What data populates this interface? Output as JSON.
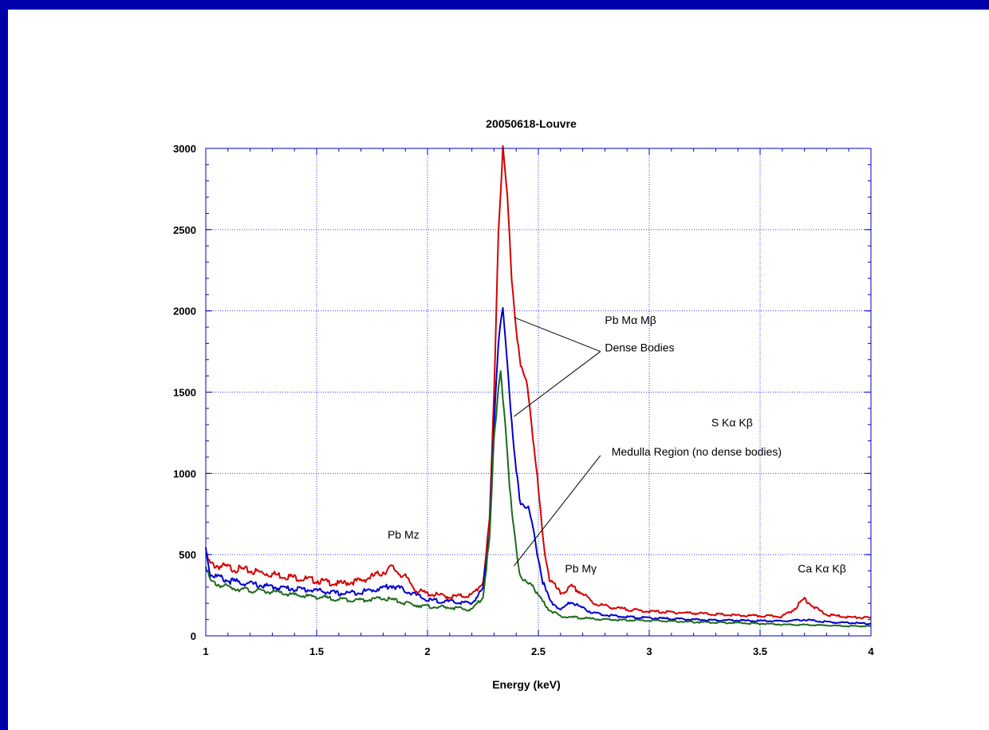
{
  "colors": {
    "background": "#0000aa",
    "plot_background": "#ffffff",
    "grid": "#3a3aff",
    "axis": "#0000cc",
    "red": "#d40000",
    "blue": "#0000cc",
    "green": "#1e6b1e"
  },
  "chart_data": {
    "type": "line",
    "title": "20050618-Louvre",
    "xlabel": "Energy (keV)",
    "ylabel": "",
    "xlim": [
      1,
      4
    ],
    "ylim": [
      0,
      3000
    ],
    "grid": true,
    "x_ticks": [
      1,
      1.5,
      2,
      2.5,
      3,
      3.5,
      4
    ],
    "x_tick_labels": [
      "1",
      "1.5",
      "2",
      "2.5",
      "3",
      "3.5",
      "4"
    ],
    "y_ticks": [
      0,
      500,
      1000,
      1500,
      2000,
      2500,
      3000
    ],
    "y_tick_labels": [
      "0",
      "500",
      "1000",
      "1500",
      "2000",
      "2500",
      "3000"
    ],
    "series": [
      {
        "color": "#d40000",
        "points": [
          [
            1.0,
            500
          ],
          [
            1.02,
            440
          ],
          [
            1.1,
            420
          ],
          [
            1.2,
            400
          ],
          [
            1.3,
            380
          ],
          [
            1.4,
            360
          ],
          [
            1.5,
            340
          ],
          [
            1.6,
            320
          ],
          [
            1.7,
            340
          ],
          [
            1.78,
            380
          ],
          [
            1.84,
            420
          ],
          [
            1.9,
            360
          ],
          [
            1.95,
            280
          ],
          [
            2.0,
            260
          ],
          [
            2.1,
            240
          ],
          [
            2.2,
            250
          ],
          [
            2.25,
            330
          ],
          [
            2.28,
            700
          ],
          [
            2.3,
            1500
          ],
          [
            2.32,
            2500
          ],
          [
            2.34,
            3000
          ],
          [
            2.36,
            2700
          ],
          [
            2.38,
            2200
          ],
          [
            2.4,
            1900
          ],
          [
            2.42,
            1650
          ],
          [
            2.45,
            1550
          ],
          [
            2.47,
            1300
          ],
          [
            2.5,
            900
          ],
          [
            2.52,
            600
          ],
          [
            2.55,
            350
          ],
          [
            2.6,
            260
          ],
          [
            2.65,
            300
          ],
          [
            2.7,
            260
          ],
          [
            2.75,
            200
          ],
          [
            2.85,
            170
          ],
          [
            3.0,
            150
          ],
          [
            3.2,
            140
          ],
          [
            3.4,
            125
          ],
          [
            3.6,
            120
          ],
          [
            3.65,
            160
          ],
          [
            3.7,
            230
          ],
          [
            3.75,
            170
          ],
          [
            3.8,
            130
          ],
          [
            3.9,
            115
          ],
          [
            4.0,
            110
          ]
        ]
      },
      {
        "color": "#0000cc",
        "points": [
          [
            1.0,
            540
          ],
          [
            1.02,
            380
          ],
          [
            1.1,
            340
          ],
          [
            1.2,
            320
          ],
          [
            1.3,
            300
          ],
          [
            1.4,
            290
          ],
          [
            1.5,
            280
          ],
          [
            1.6,
            260
          ],
          [
            1.7,
            270
          ],
          [
            1.78,
            290
          ],
          [
            1.84,
            310
          ],
          [
            1.9,
            280
          ],
          [
            2.0,
            220
          ],
          [
            2.1,
            210
          ],
          [
            2.2,
            200
          ],
          [
            2.25,
            290
          ],
          [
            2.28,
            650
          ],
          [
            2.3,
            1300
          ],
          [
            2.32,
            1800
          ],
          [
            2.34,
            2030
          ],
          [
            2.36,
            1700
          ],
          [
            2.38,
            1300
          ],
          [
            2.4,
            1000
          ],
          [
            2.42,
            820
          ],
          [
            2.45,
            800
          ],
          [
            2.47,
            700
          ],
          [
            2.5,
            480
          ],
          [
            2.52,
            330
          ],
          [
            2.55,
            220
          ],
          [
            2.6,
            160
          ],
          [
            2.65,
            210
          ],
          [
            2.7,
            170
          ],
          [
            2.75,
            140
          ],
          [
            2.85,
            120
          ],
          [
            3.0,
            110
          ],
          [
            3.2,
            100
          ],
          [
            3.4,
            95
          ],
          [
            3.6,
            90
          ],
          [
            3.7,
            100
          ],
          [
            3.8,
            85
          ],
          [
            3.9,
            80
          ],
          [
            4.0,
            75
          ]
        ]
      },
      {
        "color": "#1e6b1e",
        "points": [
          [
            1.0,
            450
          ],
          [
            1.02,
            330
          ],
          [
            1.1,
            300
          ],
          [
            1.2,
            280
          ],
          [
            1.3,
            270
          ],
          [
            1.4,
            250
          ],
          [
            1.5,
            240
          ],
          [
            1.6,
            225
          ],
          [
            1.7,
            220
          ],
          [
            1.8,
            230
          ],
          [
            1.85,
            220
          ],
          [
            1.9,
            200
          ],
          [
            2.0,
            180
          ],
          [
            2.1,
            175
          ],
          [
            2.2,
            160
          ],
          [
            2.25,
            240
          ],
          [
            2.28,
            600
          ],
          [
            2.3,
            1200
          ],
          [
            2.32,
            1550
          ],
          [
            2.33,
            1640
          ],
          [
            2.35,
            1300
          ],
          [
            2.37,
            900
          ],
          [
            2.4,
            550
          ],
          [
            2.42,
            350
          ],
          [
            2.45,
            320
          ],
          [
            2.47,
            330
          ],
          [
            2.5,
            240
          ],
          [
            2.55,
            160
          ],
          [
            2.6,
            120
          ],
          [
            2.7,
            110
          ],
          [
            2.8,
            100
          ],
          [
            3.0,
            95
          ],
          [
            3.2,
            85
          ],
          [
            3.4,
            80
          ],
          [
            3.6,
            70
          ],
          [
            3.8,
            65
          ],
          [
            3.9,
            60
          ],
          [
            4.0,
            60
          ]
        ]
      }
    ],
    "annotations": [
      {
        "text": "Pb Mz",
        "x": 1.82,
        "y": 600
      },
      {
        "text": "Pb Mα Mβ",
        "x": 2.8,
        "y": 1920
      },
      {
        "text": "Dense Bodies",
        "x": 2.8,
        "y": 1750
      },
      {
        "text": "S Kα Kβ",
        "x": 3.28,
        "y": 1290
      },
      {
        "text": "Medulla Region (no dense bodies)",
        "x": 2.83,
        "y": 1110
      },
      {
        "text": "Pb Mγ",
        "x": 2.62,
        "y": 390
      },
      {
        "text": "Ca Kα Kβ",
        "x": 3.67,
        "y": 390
      }
    ],
    "leader_lines": [
      {
        "from": [
          2.39,
          1960
        ],
        "to": [
          2.78,
          1750
        ]
      },
      {
        "from": [
          2.78,
          1750
        ],
        "to": [
          2.39,
          1350
        ]
      },
      {
        "from": [
          2.78,
          1110
        ],
        "to": [
          2.39,
          430
        ]
      }
    ]
  }
}
